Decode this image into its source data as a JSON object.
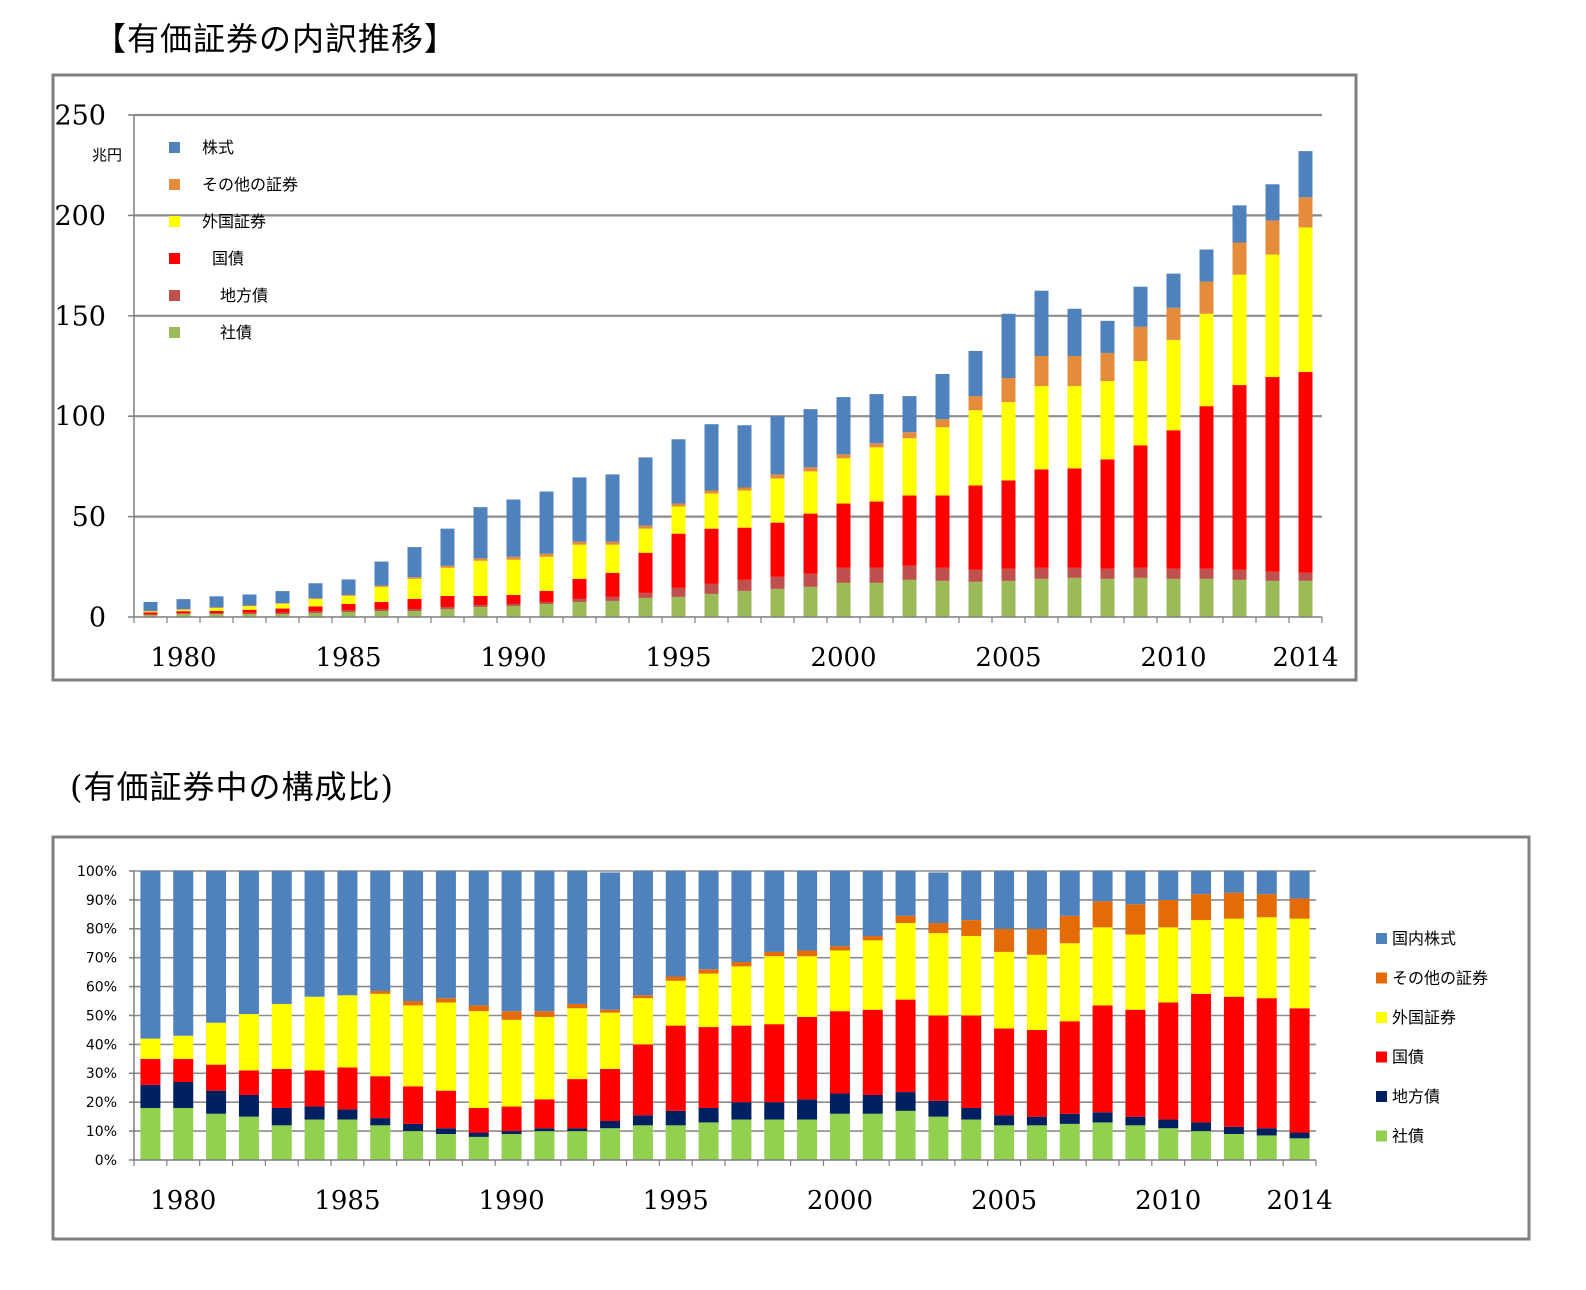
{
  "titles": {
    "main": "【有価証券の内訳推移】",
    "sub": "(有価証券中の構成比)"
  },
  "chart_data": [
    {
      "type": "bar",
      "stacked": true,
      "title": "【有価証券の内訳推移】",
      "unit_label": "兆円",
      "ylim": [
        0,
        250
      ],
      "yticks": [
        0,
        50,
        100,
        150,
        200,
        250
      ],
      "x": [
        1979,
        1980,
        1981,
        1982,
        1983,
        1984,
        1985,
        1986,
        1987,
        1988,
        1989,
        1990,
        1991,
        1992,
        1993,
        1994,
        1995,
        1996,
        1997,
        1998,
        1999,
        2000,
        2001,
        2002,
        2003,
        2004,
        2005,
        2006,
        2007,
        2008,
        2009,
        2010,
        2011,
        2012,
        2013,
        2014
      ],
      "xtick_labels": [
        "1980",
        "1985",
        "1990",
        "1995",
        "2000",
        "2005",
        "2010",
        "2014"
      ],
      "xtick_years": [
        1980,
        1985,
        1990,
        1995,
        2000,
        2005,
        2010,
        2014
      ],
      "legend": [
        "株式",
        "その他の証券",
        "外国証券",
        "国債",
        "地方債",
        "社債"
      ],
      "legend_position": "top-left",
      "series": [
        {
          "name": "社債",
          "color": "#9BBB59",
          "values": [
            1,
            1.5,
            1.5,
            1.5,
            1.5,
            2,
            2.5,
            3,
            3,
            4,
            5,
            5.5,
            6.5,
            7.5,
            8,
            9.5,
            10,
            11.5,
            13,
            14,
            15,
            17,
            17,
            18.5,
            18,
            17.5,
            18,
            19,
            19.5,
            19,
            19.5,
            19,
            19,
            18.5,
            18,
            18
          ]
        },
        {
          "name": "地方債",
          "color": "#C0504D",
          "values": [
            0.3,
            0.4,
            0.5,
            0.6,
            0.7,
            0.8,
            1,
            1,
            1,
            1,
            1,
            1,
            1,
            1.5,
            2,
            2.5,
            4.5,
            5,
            5.5,
            6,
            6.5,
            7.5,
            7.5,
            7,
            6.5,
            6,
            6,
            5.5,
            5,
            5,
            5,
            5,
            5,
            5,
            4.5,
            4
          ]
        },
        {
          "name": "国債",
          "color": "#FF0000",
          "values": [
            1,
            1,
            1,
            1.5,
            2,
            2.5,
            3,
            3.5,
            5,
            5.5,
            4.5,
            4.5,
            5.5,
            10,
            12,
            20,
            27,
            27.5,
            26,
            27,
            30,
            32,
            33,
            35,
            36,
            42,
            44,
            49,
            49.5,
            54.5,
            61,
            69,
            81,
            92,
            97,
            100
          ]
        },
        {
          "name": "外国証券",
          "color": "#FFFF00",
          "values": [
            0.5,
            0.7,
            1.5,
            1.8,
            2.4,
            3.6,
            4,
            7.5,
            10,
            14,
            17.5,
            17.5,
            17,
            17,
            14,
            12,
            13.5,
            17.5,
            18.5,
            22,
            21,
            22.5,
            27,
            28.5,
            34,
            37.5,
            39,
            41.5,
            41,
            39,
            42,
            45,
            46,
            55,
            61,
            72
          ]
        },
        {
          "name": "その他の証券",
          "color": "#E58B3C",
          "values": [
            0.2,
            0.3,
            0.3,
            0.3,
            0.3,
            0.4,
            0.5,
            0.6,
            0.8,
            1,
            1.2,
            1.5,
            1.5,
            1.5,
            1.5,
            1.5,
            1.5,
            1.5,
            1.5,
            2,
            2,
            2,
            2,
            3,
            4,
            7,
            12,
            15,
            15,
            14,
            17,
            16,
            16,
            16,
            17,
            15
          ]
        },
        {
          "name": "株式",
          "color": "#4F81BD",
          "values": [
            4.5,
            5,
            5.5,
            5.5,
            6,
            7.5,
            7.7,
            12,
            15,
            18.5,
            25.5,
            28.5,
            31,
            32,
            33.5,
            34,
            32,
            33,
            31,
            29,
            29,
            28.5,
            24.5,
            18,
            22.5,
            22.5,
            32,
            32.5,
            23.5,
            16,
            20,
            17,
            16,
            18.5,
            18,
            23
          ]
        }
      ]
    },
    {
      "type": "bar",
      "stacked": true,
      "percent": true,
      "title": "(有価証券中の構成比)",
      "ylim": [
        0,
        100
      ],
      "ytick_labels": [
        "0%",
        "10%",
        "20%",
        "30%",
        "40%",
        "50%",
        "60%",
        "70%",
        "80%",
        "90%",
        "100%"
      ],
      "x": [
        1979,
        1980,
        1981,
        1982,
        1983,
        1984,
        1985,
        1986,
        1987,
        1988,
        1989,
        1990,
        1991,
        1992,
        1993,
        1994,
        1995,
        1996,
        1997,
        1998,
        1999,
        2000,
        2001,
        2002,
        2003,
        2004,
        2005,
        2006,
        2007,
        2008,
        2009,
        2010,
        2011,
        2012,
        2013,
        2014
      ],
      "xtick_labels": [
        "1980",
        "1985",
        "1990",
        "1995",
        "2000",
        "2005",
        "2010",
        "2014"
      ],
      "xtick_years": [
        1980,
        1985,
        1990,
        1995,
        2000,
        2005,
        2010,
        2014
      ],
      "legend": [
        "国内株式",
        "その他の証券",
        "外国証券",
        "国債",
        "地方債",
        "社債"
      ],
      "legend_position": "right",
      "series": [
        {
          "name": "社債",
          "color": "#92D050",
          "values": [
            18,
            18,
            16,
            15,
            12,
            14,
            14,
            12,
            10,
            9,
            8,
            9,
            10,
            10,
            11,
            12,
            12,
            13,
            14,
            14,
            14,
            16,
            16,
            17,
            15,
            14,
            12,
            12,
            12.5,
            13,
            12,
            11,
            10,
            9,
            8.5,
            7.5
          ]
        },
        {
          "name": "地方債",
          "color": "#002060",
          "values": [
            8,
            9,
            8,
            7.5,
            6,
            4.5,
            3.5,
            2.5,
            2.5,
            2,
            1.5,
            1,
            1,
            1,
            2.5,
            3.5,
            5,
            5,
            6,
            6,
            7,
            7,
            6.5,
            6.5,
            5.5,
            4,
            3.5,
            3,
            3.5,
            3.5,
            3,
            3,
            3,
            2.5,
            2.5,
            2
          ]
        },
        {
          "name": "国債",
          "color": "#FF0000",
          "values": [
            9,
            8,
            9,
            8.5,
            13.5,
            12.5,
            14.5,
            14.5,
            13,
            13,
            8.5,
            8.5,
            10,
            17,
            18,
            24.5,
            29.5,
            28,
            26.5,
            27,
            28.5,
            28.5,
            29.5,
            32,
            29.5,
            32,
            30,
            30,
            32,
            37,
            37,
            40.5,
            44.5,
            45,
            45,
            43
          ]
        },
        {
          "name": "外国証券",
          "color": "#FFFF00",
          "values": [
            7,
            8,
            14.5,
            19.5,
            22.5,
            25.5,
            25,
            28.5,
            28,
            30.5,
            33.5,
            30,
            28.5,
            24.5,
            19.5,
            16,
            15.5,
            18.5,
            20.5,
            23.5,
            21,
            21,
            24,
            26.5,
            28.5,
            27.5,
            26.5,
            26,
            27,
            27,
            26,
            26,
            25.5,
            27,
            28,
            31
          ]
        },
        {
          "name": "その他の証券",
          "color": "#E36C09",
          "values": [
            0,
            0,
            0,
            0,
            0,
            0,
            0,
            1,
            1.5,
            1.5,
            2,
            3,
            2,
            1.5,
            1,
            1,
            1.5,
            1.5,
            1.5,
            1.5,
            2,
            1.5,
            1.5,
            2.5,
            3.5,
            5.5,
            8,
            9,
            9.5,
            9,
            10.5,
            9.5,
            9,
            9,
            8,
            7
          ]
        },
        {
          "name": "国内株式",
          "color": "#4F81BD",
          "values": [
            58,
            57,
            52.5,
            49.5,
            46,
            43.5,
            43,
            41.5,
            45,
            44,
            46.5,
            48.5,
            48.5,
            46,
            47.5,
            43,
            36.5,
            34,
            31.5,
            28,
            27.5,
            26,
            22.5,
            15.5,
            17.5,
            17,
            20,
            20,
            15.5,
            10.5,
            11.5,
            10,
            8,
            7.5,
            8,
            9.5
          ]
        }
      ]
    }
  ]
}
